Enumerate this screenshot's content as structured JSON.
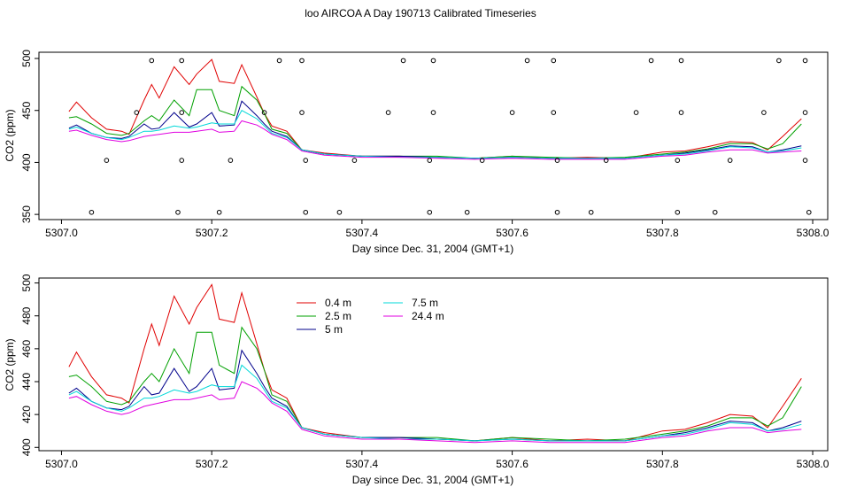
{
  "title": "loo AIRCOA A  Day 190713  Calibrated Timeseries",
  "chart_data": [
    {
      "type": "scatter",
      "xlabel": "Day since Dec. 31, 2004 (GMT+1)",
      "ylabel": "CO2 (ppm)",
      "xlim": [
        5306.97,
        5308.02
      ],
      "ylim": [
        345,
        506
      ],
      "xticks": [
        "5307.0",
        "5307.2",
        "5307.4",
        "5307.6",
        "5307.8",
        "5308.0"
      ],
      "yticks": [
        "350",
        "400",
        "450",
        "500"
      ],
      "line_series_are_same_as_panel_2": true,
      "flag_points": [
        {
          "x": 5307.04,
          "y": 352
        },
        {
          "x": 5307.06,
          "y": 402
        },
        {
          "x": 5307.1,
          "y": 448
        },
        {
          "x": 5307.12,
          "y": 498
        },
        {
          "x": 5307.16,
          "y": 448
        },
        {
          "x": 5307.155,
          "y": 352
        },
        {
          "x": 5307.16,
          "y": 402
        },
        {
          "x": 5307.16,
          "y": 498
        },
        {
          "x": 5307.21,
          "y": 352
        },
        {
          "x": 5307.225,
          "y": 402
        },
        {
          "x": 5307.27,
          "y": 448
        },
        {
          "x": 5307.29,
          "y": 498
        },
        {
          "x": 5307.32,
          "y": 448
        },
        {
          "x": 5307.32,
          "y": 498
        },
        {
          "x": 5307.325,
          "y": 402
        },
        {
          "x": 5307.325,
          "y": 352
        },
        {
          "x": 5307.37,
          "y": 352
        },
        {
          "x": 5307.39,
          "y": 402
        },
        {
          "x": 5307.435,
          "y": 448
        },
        {
          "x": 5307.455,
          "y": 498
        },
        {
          "x": 5307.49,
          "y": 352
        },
        {
          "x": 5307.49,
          "y": 402
        },
        {
          "x": 5307.495,
          "y": 448
        },
        {
          "x": 5307.495,
          "y": 498
        },
        {
          "x": 5307.54,
          "y": 352
        },
        {
          "x": 5307.56,
          "y": 402
        },
        {
          "x": 5307.6,
          "y": 448
        },
        {
          "x": 5307.62,
          "y": 498
        },
        {
          "x": 5307.655,
          "y": 448
        },
        {
          "x": 5307.655,
          "y": 498
        },
        {
          "x": 5307.66,
          "y": 402
        },
        {
          "x": 5307.66,
          "y": 352
        },
        {
          "x": 5307.705,
          "y": 352
        },
        {
          "x": 5307.725,
          "y": 402
        },
        {
          "x": 5307.765,
          "y": 448
        },
        {
          "x": 5307.785,
          "y": 498
        },
        {
          "x": 5307.82,
          "y": 352
        },
        {
          "x": 5307.82,
          "y": 402
        },
        {
          "x": 5307.825,
          "y": 448
        },
        {
          "x": 5307.825,
          "y": 498
        },
        {
          "x": 5307.87,
          "y": 352
        },
        {
          "x": 5307.89,
          "y": 402
        },
        {
          "x": 5307.935,
          "y": 448
        },
        {
          "x": 5307.955,
          "y": 498
        },
        {
          "x": 5307.99,
          "y": 498
        },
        {
          "x": 5307.99,
          "y": 448
        },
        {
          "x": 5307.99,
          "y": 402
        },
        {
          "x": 5307.995,
          "y": 352
        }
      ]
    },
    {
      "type": "line",
      "xlabel": "Day since Dec. 31, 2004 (GMT+1)",
      "ylabel": "CO2 (ppm)",
      "xlim": [
        5306.97,
        5308.02
      ],
      "ylim": [
        398,
        503
      ],
      "xticks": [
        "5307.0",
        "5307.2",
        "5307.4",
        "5307.6",
        "5307.8",
        "5308.0"
      ],
      "yticks": [
        "400",
        "420",
        "440",
        "460",
        "480",
        "500"
      ],
      "legend_position": "top-left (inside plot)",
      "x": [
        5307.01,
        5307.02,
        5307.04,
        5307.06,
        5307.08,
        5307.09,
        5307.11,
        5307.12,
        5307.13,
        5307.15,
        5307.17,
        5307.18,
        5307.2,
        5307.21,
        5307.23,
        5307.24,
        5307.26,
        5307.27,
        5307.28,
        5307.3,
        5307.32,
        5307.35,
        5307.4,
        5307.45,
        5307.5,
        5307.55,
        5307.6,
        5307.65,
        5307.7,
        5307.75,
        5307.8,
        5307.83,
        5307.86,
        5307.89,
        5307.92,
        5307.94,
        5307.96,
        5307.985
      ],
      "series": [
        {
          "name": "0.4 m",
          "color": "#e00000",
          "values": [
            449,
            458,
            443,
            432,
            430,
            427,
            460,
            475,
            462,
            492,
            475,
            485,
            499,
            478,
            476,
            494,
            463,
            447,
            435,
            430,
            412,
            409,
            406,
            406,
            405,
            404,
            406,
            404,
            405,
            404,
            410,
            411,
            415,
            420,
            419,
            412,
            425,
            442
          ]
        },
        {
          "name": "2.5 m",
          "color": "#00a000",
          "values": [
            443,
            444,
            437,
            428,
            426,
            428,
            440,
            445,
            440,
            460,
            445,
            470,
            470,
            450,
            445,
            473,
            460,
            447,
            432,
            428,
            412,
            408,
            406,
            406,
            406,
            404,
            406,
            405,
            404,
            405,
            408,
            410,
            413,
            418,
            418,
            413,
            418,
            437
          ]
        },
        {
          "name": "5 m",
          "color": "#00008b",
          "values": [
            433,
            436,
            428,
            424,
            423,
            425,
            437,
            432,
            433,
            448,
            434,
            437,
            448,
            435,
            436,
            459,
            445,
            437,
            430,
            425,
            412,
            408,
            406,
            406,
            405,
            404,
            405,
            404,
            404,
            404,
            407,
            409,
            412,
            416,
            415,
            410,
            412,
            416
          ]
        },
        {
          "name": "7.5 m",
          "color": "#00d8d8",
          "values": [
            432,
            434,
            428,
            424,
            422,
            424,
            430,
            430,
            431,
            435,
            433,
            434,
            438,
            437,
            437,
            450,
            442,
            435,
            428,
            424,
            412,
            408,
            406,
            405,
            405,
            404,
            405,
            404,
            404,
            404,
            407,
            408,
            411,
            415,
            414,
            410,
            411,
            414
          ]
        },
        {
          "name": "24.4 m",
          "color": "#e000e0",
          "values": [
            430,
            431,
            426,
            422,
            420,
            421,
            425,
            426,
            427,
            429,
            429,
            430,
            432,
            429,
            430,
            440,
            436,
            432,
            427,
            422,
            411,
            407,
            405,
            405,
            404,
            403,
            404,
            403,
            403,
            403,
            406,
            407,
            410,
            412,
            412,
            409,
            410,
            411
          ]
        }
      ]
    }
  ]
}
